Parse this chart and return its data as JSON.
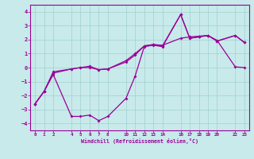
{
  "xlabel": "Windchill (Refroidissement éolien,°C)",
  "background_color": "#c8eaea",
  "line_color": "#990099",
  "ylim": [
    -4.5,
    4.5
  ],
  "xlim": [
    -0.5,
    23.5
  ],
  "yticks": [
    -4,
    -3,
    -2,
    -1,
    0,
    1,
    2,
    3,
    4
  ],
  "xticks": [
    0,
    1,
    2,
    4,
    5,
    6,
    7,
    8,
    10,
    11,
    12,
    13,
    14,
    16,
    17,
    18,
    19,
    20,
    22,
    23
  ],
  "series1_x": [
    0,
    1,
    2,
    4,
    5,
    6,
    7,
    8,
    10,
    11,
    12,
    13,
    14,
    16,
    17,
    18,
    19,
    20,
    22,
    23
  ],
  "series1_y": [
    -2.6,
    -1.7,
    -0.5,
    -3.5,
    -3.5,
    -3.4,
    -3.8,
    -3.5,
    -2.2,
    -0.6,
    1.5,
    1.6,
    1.5,
    3.8,
    2.1,
    2.2,
    2.3,
    1.9,
    2.3,
    1.8
  ],
  "series2_x": [
    0,
    1,
    2,
    4,
    5,
    6,
    7,
    8,
    10,
    11,
    12,
    13,
    14,
    16,
    17,
    18,
    19,
    20,
    22,
    23
  ],
  "series2_y": [
    -2.6,
    -1.7,
    -0.3,
    -0.1,
    0.0,
    0.0,
    -0.15,
    -0.1,
    0.5,
    1.0,
    1.55,
    1.65,
    1.6,
    2.1,
    2.2,
    2.25,
    2.3,
    1.95,
    0.05,
    0.0
  ],
  "series3_x": [
    0,
    1,
    2,
    4,
    5,
    6,
    7,
    8,
    10,
    11,
    12,
    13,
    14,
    16,
    17,
    18,
    19,
    20,
    22,
    23
  ],
  "series3_y": [
    -2.6,
    -1.7,
    -0.4,
    -0.1,
    0.0,
    0.1,
    -0.15,
    -0.1,
    0.4,
    0.9,
    1.55,
    1.65,
    1.55,
    3.8,
    2.1,
    2.2,
    2.3,
    1.9,
    2.3,
    1.8
  ],
  "grid_color": "#a0d0d0",
  "marker": "D",
  "marker_size": 2.0,
  "linewidth": 0.9
}
